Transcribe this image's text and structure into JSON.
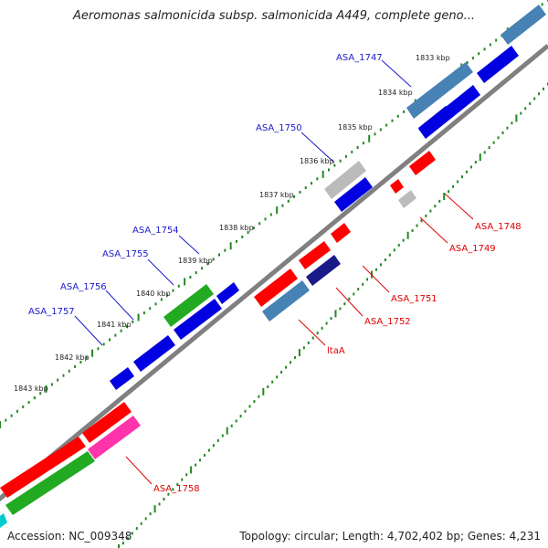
{
  "title": "Aeromonas salmonicida subsp. salmonicida A449, complete geno...",
  "footer": {
    "accession_label": "Accession: NC_009348",
    "summary_label": "Topology: circular; Length: 4,702,402 bp; Genes: 4,231"
  },
  "colors": {
    "forward_gene": "#0000e0",
    "reverse_gene": "#ff0000",
    "steelblue_gene": "#4682b4",
    "green_gene": "#22aa22",
    "magenta_gene": "#ff33aa",
    "grey_gene": "#bbbbbb",
    "navy_gene": "#1a1a88",
    "backbone": "#808080",
    "tick_green": "#228822",
    "label_forward": "#1a1acc",
    "label_reverse": "#e00000"
  },
  "kbp_ticks": [
    "1833 kbp",
    "1834 kbp",
    "1835 kbp",
    "1836 kbp",
    "1837 kbp",
    "1838 kbp",
    "1839 kbp",
    "1840 kbp",
    "1841 kbp",
    "1842 kbp",
    "1843 kbp"
  ],
  "forward_labels": [
    "ASA_1747",
    "ASA_1750",
    "ASA_1754",
    "ASA_1755",
    "ASA_1756",
    "ASA_1757"
  ],
  "reverse_labels": [
    "ASA_1748",
    "ASA_1749",
    "ASA_1751",
    "ASA_1752",
    "ltaA",
    "ASA_1758"
  ]
}
